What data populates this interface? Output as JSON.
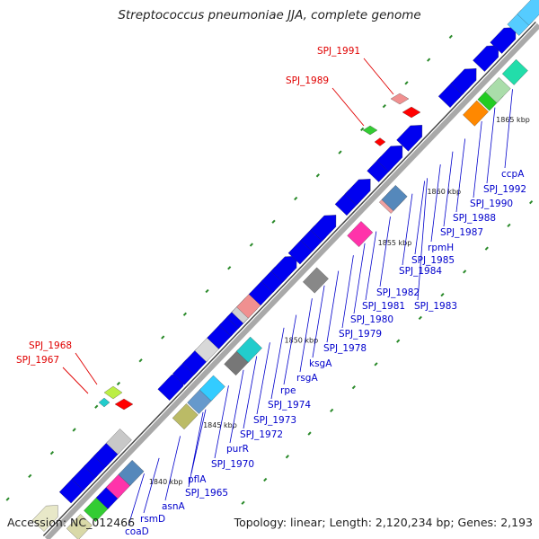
{
  "title": "Streptococcus pneumoniae JJA, complete genome",
  "footer": {
    "accession": "Accession: NC_012466",
    "summary": "Topology: linear; Length: 2,120,234 bp; Genes: 2,193"
  },
  "colors": {
    "backbone": "#a9a9a9",
    "forward_line": "#4a4a4a",
    "gene_blue": "#0000f0",
    "label_blue": "#0000cc",
    "label_red": "#e00000",
    "dot_green": "#2a8a2a"
  },
  "ticks": [
    "1840 kbp",
    "1845 kbp",
    "1850 kbp",
    "1855 kbp",
    "1860 kbp",
    "1865 kbp"
  ],
  "labels_top": [
    "SPJ_1991",
    "SPJ_1989",
    "SPJ_1968",
    "SPJ_1967"
  ],
  "labels_bottom": [
    "ccpA",
    "SPJ_1992",
    "SPJ_1990",
    "SPJ_1988",
    "SPJ_1987",
    "rpmH",
    "SPJ_1985",
    "SPJ_1984",
    "SPJ_1982",
    "SPJ_1983",
    "SPJ_1981",
    "SPJ_1980",
    "SPJ_1979",
    "SPJ_1978",
    "ksgA",
    "rsgA",
    "rpe",
    "SPJ_1974",
    "SPJ_1973",
    "SPJ_1972",
    "purR",
    "SPJ_1970",
    "pflA",
    "SPJ_1965",
    "asnA",
    "rsmD",
    "coaD"
  ],
  "genes": [
    {
      "pos": 0.005,
      "strand": "top",
      "color": "#e8e8c8",
      "dir": "fwd"
    },
    {
      "pos": 0.03,
      "strand": "bottom",
      "color": "#d9d9a8",
      "dir": "none"
    },
    {
      "pos": 0.06,
      "strand": "top",
      "color": "#0000f0",
      "dir": "fwd"
    },
    {
      "pos": 0.065,
      "strand": "bottom",
      "color": "#33cc33",
      "dir": "none"
    },
    {
      "pos": 0.085,
      "strand": "top",
      "color": "#0000f0",
      "dir": "fwd"
    },
    {
      "pos": 0.09,
      "strand": "bottom",
      "color": "#0000f0",
      "dir": "fwd"
    },
    {
      "pos": 0.11,
      "strand": "top",
      "color": "#0000f0",
      "dir": "fwd"
    },
    {
      "pos": 0.11,
      "strand": "bottom",
      "color": "#ff33aa",
      "dir": "none"
    },
    {
      "pos": 0.13,
      "strand": "top",
      "color": "#0000f0",
      "dir": "fwd"
    },
    {
      "pos": 0.135,
      "strand": "bottom",
      "color": "#5588bb",
      "dir": "none"
    },
    {
      "pos": 0.155,
      "strand": "top",
      "color": "#c8c8c8",
      "dir": "none"
    },
    {
      "pos": 0.245,
      "strand": "bottom",
      "color": "#bbbb66",
      "dir": "none"
    },
    {
      "pos": 0.26,
      "strand": "top",
      "color": "#0000f0",
      "dir": "fwd"
    },
    {
      "pos": 0.275,
      "strand": "bottom",
      "color": "#6699cc",
      "dir": "none"
    },
    {
      "pos": 0.29,
      "strand": "top",
      "color": "#0000f0",
      "dir": "fwd"
    },
    {
      "pos": 0.3,
      "strand": "bottom",
      "color": "#33ccff",
      "dir": "none"
    },
    {
      "pos": 0.31,
      "strand": "top",
      "color": "#0000f0",
      "dir": "fwd"
    },
    {
      "pos": 0.335,
      "strand": "top",
      "color": "#d8d8d8",
      "dir": "none"
    },
    {
      "pos": 0.35,
      "strand": "bottom",
      "color": "#777777",
      "dir": "none"
    },
    {
      "pos": 0.36,
      "strand": "top",
      "color": "#0000f0",
      "dir": "fwd"
    },
    {
      "pos": 0.375,
      "strand": "bottom",
      "color": "#22cccc",
      "dir": "none"
    },
    {
      "pos": 0.385,
      "strand": "top",
      "color": "#0000f0",
      "dir": "fwd"
    },
    {
      "pos": 0.4,
      "strand": "top",
      "color": "#0000f0",
      "dir": "fwd"
    },
    {
      "pos": 0.41,
      "strand": "top",
      "color": "#d0d0d0",
      "dir": "none"
    },
    {
      "pos": 0.42,
      "strand": "top",
      "color": "#f09090",
      "dir": "none"
    },
    {
      "pos": 0.445,
      "strand": "top",
      "color": "#0000f0",
      "dir": "fwd"
    },
    {
      "pos": 0.47,
      "strand": "top",
      "color": "#0000f0",
      "dir": "fwd"
    },
    {
      "pos": 0.49,
      "strand": "top",
      "color": "#0000f0",
      "dir": "fwd"
    },
    {
      "pos": 0.51,
      "strand": "bottom",
      "color": "#888888",
      "dir": "none"
    },
    {
      "pos": 0.525,
      "strand": "top",
      "color": "#0000f0",
      "dir": "fwd"
    },
    {
      "pos": 0.55,
      "strand": "top",
      "color": "#0000f0",
      "dir": "fwd"
    },
    {
      "pos": 0.57,
      "strand": "top",
      "color": "#0000f0",
      "dir": "fwd"
    },
    {
      "pos": 0.6,
      "strand": "bottom",
      "color": "#ff33aa",
      "dir": "none"
    },
    {
      "pos": 0.62,
      "strand": "top",
      "color": "#0000f0",
      "dir": "fwd"
    },
    {
      "pos": 0.64,
      "strand": "top",
      "color": "#0000f0",
      "dir": "fwd"
    },
    {
      "pos": 0.665,
      "strand": "bottom",
      "color": "#f0a0a0",
      "dir": "none"
    },
    {
      "pos": 0.67,
      "strand": "bottom",
      "color": "#5588bb",
      "dir": "none"
    },
    {
      "pos": 0.685,
      "strand": "top",
      "color": "#0000f0",
      "dir": "fwd"
    },
    {
      "pos": 0.705,
      "strand": "top",
      "color": "#0000f0",
      "dir": "fwd"
    },
    {
      "pos": 0.745,
      "strand": "top",
      "color": "#0000f0",
      "dir": "fwd"
    },
    {
      "pos": 0.83,
      "strand": "top",
      "color": "#0000f0",
      "dir": "fwd"
    },
    {
      "pos": 0.835,
      "strand": "bottom",
      "color": "#ff8800",
      "dir": "none"
    },
    {
      "pos": 0.855,
      "strand": "top",
      "color": "#0000f0",
      "dir": "fwd"
    },
    {
      "pos": 0.865,
      "strand": "bottom",
      "color": "#22cc22",
      "dir": "none"
    },
    {
      "pos": 0.88,
      "strand": "bottom",
      "color": "#aaddaa",
      "dir": "none"
    },
    {
      "pos": 0.9,
      "strand": "top",
      "color": "#0000f0",
      "dir": "fwd"
    },
    {
      "pos": 0.915,
      "strand": "bottom",
      "color": "#22ddaa",
      "dir": "none"
    },
    {
      "pos": 0.935,
      "strand": "top",
      "color": "#0000f0",
      "dir": "fwd"
    },
    {
      "pos": 0.97,
      "strand": "top",
      "color": "#55ccff",
      "dir": "fwd"
    },
    {
      "pos": 0.99,
      "strand": "top",
      "color": "#55ccff",
      "dir": "fwd"
    }
  ]
}
